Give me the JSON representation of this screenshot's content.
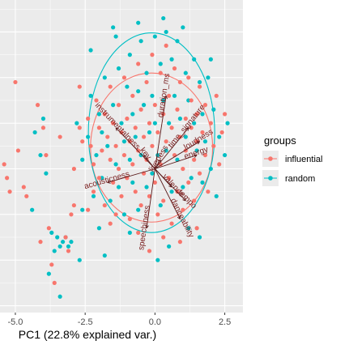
{
  "chart_data": {
    "type": "scatter",
    "title": "",
    "xlabel": "PC1 (22.8% explained var.)",
    "ylabel": "",
    "xlim": [
      -5.55,
      3.15
    ],
    "ylim": [
      -3.15,
      3.7
    ],
    "x_ticks": [
      -5.0,
      -2.5,
      0.0,
      2.5
    ],
    "x_tick_labels": [
      "-5.0",
      "-2.5",
      "0.0",
      "2.5"
    ],
    "grid": true,
    "legend_position": "right",
    "legend": {
      "title": "groups",
      "entries": [
        {
          "name": "influential",
          "color": "#F8766D"
        },
        {
          "name": "random",
          "color": "#00BFC4"
        }
      ]
    },
    "loadings": [
      {
        "label": "duration_ms",
        "x": 0.4,
        "y": 1.6
      },
      {
        "label": "time_signature",
        "x": 1.2,
        "y": 0.9
      },
      {
        "label": "loudness",
        "x": 1.6,
        "y": 0.6
      },
      {
        "label": "energy",
        "x": 1.5,
        "y": 0.3
      },
      {
        "label": "instrumentalness",
        "x": -1.4,
        "y": 0.9
      },
      {
        "label": "acousticness",
        "x": -1.7,
        "y": -0.3
      },
      {
        "label": "valence",
        "x": 0.6,
        "y": -0.4
      },
      {
        "label": "tempo",
        "x": 1.1,
        "y": -0.7
      },
      {
        "label": "danceability",
        "x": 0.9,
        "y": -1.1
      },
      {
        "label": "speechiness",
        "x": -0.3,
        "y": -1.3
      },
      {
        "label": "liveness",
        "x": 0.2,
        "y": 0.2
      },
      {
        "label": "key",
        "x": -0.4,
        "y": 0.3
      }
    ],
    "series": [
      {
        "name": "influential",
        "points": [
          [
            -5.4,
            0.1
          ],
          [
            -5.3,
            -0.2
          ],
          [
            -5.2,
            -0.5
          ],
          [
            -5.0,
            1.9
          ],
          [
            -4.9,
            0.4
          ],
          [
            -4.7,
            -0.4
          ],
          [
            -4.6,
            -0.6
          ],
          [
            -4.2,
            1.4
          ],
          [
            -4.0,
            0.9
          ],
          [
            -3.9,
            0.3
          ],
          [
            -3.8,
            -1.3
          ],
          [
            -3.7,
            -2.1
          ],
          [
            -3.4,
            0.7
          ],
          [
            -3.2,
            -1.5
          ],
          [
            -3.0,
            -1.0
          ],
          [
            -2.9,
            -0.8
          ],
          [
            -2.9,
            0.0
          ],
          [
            -2.7,
            0.9
          ],
          [
            -2.7,
            1.8
          ],
          [
            -2.6,
            0.6
          ],
          [
            -2.4,
            1.1
          ],
          [
            -2.3,
            0.5
          ],
          [
            -2.2,
            0.1
          ],
          [
            -2.2,
            -0.5
          ],
          [
            -2.1,
            1.5
          ],
          [
            -2.0,
            0.9
          ],
          [
            -2.0,
            -0.2
          ],
          [
            -1.9,
            0.4
          ],
          [
            -1.8,
            1.2
          ],
          [
            -1.8,
            -0.8
          ],
          [
            -1.7,
            0.7
          ],
          [
            -1.6,
            0.2
          ],
          [
            -1.6,
            1.8
          ],
          [
            -1.5,
            -0.3
          ],
          [
            -1.5,
            1.0
          ],
          [
            -1.4,
            0.5
          ],
          [
            -1.4,
            -1.0
          ],
          [
            -1.3,
            1.4
          ],
          [
            -1.3,
            0.0
          ],
          [
            -1.2,
            0.8
          ],
          [
            -1.2,
            -0.6
          ],
          [
            -1.1,
            2.0
          ],
          [
            -1.1,
            0.3
          ],
          [
            -1.0,
            1.1
          ],
          [
            -1.0,
            -0.2
          ],
          [
            -0.9,
            0.6
          ],
          [
            -0.9,
            -1.1
          ],
          [
            -0.8,
            1.6
          ],
          [
            -0.8,
            0.1
          ],
          [
            -0.7,
            0.9
          ],
          [
            -0.7,
            -0.5
          ],
          [
            -0.6,
            2.3
          ],
          [
            -0.6,
            0.4
          ],
          [
            -0.5,
            1.3
          ],
          [
            -0.5,
            -0.8
          ],
          [
            -0.4,
            0.7
          ],
          [
            -0.4,
            -0.1
          ],
          [
            -0.3,
            1.9
          ],
          [
            -0.3,
            0.2
          ],
          [
            -0.2,
            1.0
          ],
          [
            -0.2,
            -0.6
          ],
          [
            -0.1,
            2.5
          ],
          [
            -0.1,
            0.5
          ],
          [
            0.0,
            1.4
          ],
          [
            0.0,
            -0.3
          ],
          [
            0.1,
            0.8
          ],
          [
            0.1,
            -1.0
          ],
          [
            0.2,
            2.1
          ],
          [
            0.2,
            0.1
          ],
          [
            0.3,
            1.2
          ],
          [
            0.3,
            -0.7
          ],
          [
            0.4,
            0.6
          ],
          [
            0.4,
            2.7
          ],
          [
            0.5,
            1.6
          ],
          [
            0.5,
            -0.2
          ],
          [
            0.6,
            0.9
          ],
          [
            0.6,
            -1.2
          ],
          [
            0.7,
            2.2
          ],
          [
            0.7,
            0.3
          ],
          [
            0.8,
            1.3
          ],
          [
            0.8,
            -0.5
          ],
          [
            0.9,
            0.7
          ],
          [
            0.9,
            1.9
          ],
          [
            1.0,
            0.0
          ],
          [
            1.0,
            -0.9
          ],
          [
            1.1,
            1.1
          ],
          [
            1.1,
            0.4
          ],
          [
            1.2,
            2.0
          ],
          [
            1.2,
            -0.3
          ],
          [
            1.3,
            0.9
          ],
          [
            1.3,
            1.5
          ],
          [
            1.4,
            0.2
          ],
          [
            1.4,
            -0.7
          ],
          [
            1.5,
            1.2
          ],
          [
            1.5,
            0.6
          ],
          [
            1.6,
            1.8
          ],
          [
            1.6,
            -0.1
          ],
          [
            1.7,
            0.8
          ],
          [
            1.8,
            1.4
          ],
          [
            1.8,
            0.3
          ],
          [
            1.9,
            -0.5
          ],
          [
            2.0,
            1.0
          ],
          [
            2.1,
            0.5
          ],
          [
            2.2,
            1.6
          ],
          [
            2.3,
            0.1
          ],
          [
            2.4,
            0.8
          ],
          [
            2.5,
            1.2
          ],
          [
            0.3,
            -1.5
          ],
          [
            -0.6,
            -1.4
          ],
          [
            0.9,
            -1.6
          ],
          [
            -1.6,
            -1.2
          ],
          [
            -2.4,
            -0.9
          ],
          [
            -0.2,
            -1.8
          ],
          [
            1.5,
            -1.3
          ],
          [
            -3.6,
            -2.5
          ],
          [
            -4.1,
            -1.6
          ],
          [
            -3.1,
            -1.8
          ]
        ]
      },
      {
        "name": "random",
        "points": [
          [
            -4.3,
            0.8
          ],
          [
            -4.1,
            0.3
          ],
          [
            -4.0,
            1.1
          ],
          [
            -3.9,
            -0.1
          ],
          [
            -3.8,
            -2.3
          ],
          [
            -3.7,
            -1.4
          ],
          [
            -3.6,
            -1.8
          ],
          [
            -3.5,
            -1.5
          ],
          [
            -3.4,
            -1.7
          ],
          [
            -3.3,
            -1.6
          ],
          [
            -3.2,
            -1.5
          ],
          [
            -3.1,
            -1.7
          ],
          [
            -3.0,
            -1.6
          ],
          [
            -3.4,
            -2.8
          ],
          [
            -4.4,
            -0.9
          ],
          [
            -2.8,
            1.0
          ],
          [
            -2.6,
            -0.9
          ],
          [
            -2.6,
            0.2
          ],
          [
            -2.4,
            0.7
          ],
          [
            -2.3,
            1.6
          ],
          [
            -2.2,
            -0.6
          ],
          [
            -2.1,
            0.3
          ],
          [
            -2.0,
            1.2
          ],
          [
            -1.9,
            -0.2
          ],
          [
            -1.9,
            0.8
          ],
          [
            -1.8,
            2.0
          ],
          [
            -1.7,
            0.5
          ],
          [
            -1.6,
            -0.7
          ],
          [
            -1.5,
            1.4
          ],
          [
            -1.4,
            0.1
          ],
          [
            -1.3,
            2.2
          ],
          [
            -1.3,
            -0.4
          ],
          [
            -1.2,
            1.0
          ],
          [
            -1.1,
            0.6
          ],
          [
            -1.1,
            -1.0
          ],
          [
            -1.0,
            1.8
          ],
          [
            -0.9,
            0.2
          ],
          [
            -0.9,
            2.5
          ],
          [
            -0.8,
            1.2
          ],
          [
            -0.8,
            -0.3
          ],
          [
            -0.7,
            0.7
          ],
          [
            -0.6,
            1.7
          ],
          [
            -0.6,
            -0.9
          ],
          [
            -0.5,
            2.8
          ],
          [
            -0.5,
            0.3
          ],
          [
            -0.4,
            1.4
          ],
          [
            -0.3,
            -0.4
          ],
          [
            -0.3,
            2.1
          ],
          [
            -0.2,
            0.8
          ],
          [
            -0.1,
            1.6
          ],
          [
            -0.1,
            -0.1
          ],
          [
            0.0,
            2.9
          ],
          [
            0.0,
            1.0
          ],
          [
            0.1,
            0.3
          ],
          [
            0.2,
            2.3
          ],
          [
            0.2,
            -0.8
          ],
          [
            0.3,
            1.5
          ],
          [
            0.4,
            0.4
          ],
          [
            0.4,
            3.0
          ],
          [
            0.5,
            1.0
          ],
          [
            0.6,
            -0.5
          ],
          [
            0.6,
            2.4
          ],
          [
            0.7,
            1.6
          ],
          [
            0.8,
            0.2
          ],
          [
            0.8,
            2.8
          ],
          [
            0.9,
            1.1
          ],
          [
            1.0,
            -0.4
          ],
          [
            1.1,
            2.1
          ],
          [
            1.1,
            0.7
          ],
          [
            1.2,
            1.5
          ],
          [
            1.3,
            -0.2
          ],
          [
            1.4,
            2.4
          ],
          [
            1.4,
            1.0
          ],
          [
            1.5,
            0.4
          ],
          [
            1.6,
            1.9
          ],
          [
            1.7,
            -0.3
          ],
          [
            1.7,
            1.2
          ],
          [
            1.8,
            0.6
          ],
          [
            1.9,
            2.0
          ],
          [
            2.0,
            0.0
          ],
          [
            2.1,
            1.3
          ],
          [
            2.2,
            -0.6
          ],
          [
            2.3,
            0.7
          ],
          [
            2.5,
            0.3
          ],
          [
            2.6,
            1.0
          ],
          [
            -0.6,
            3.2
          ],
          [
            0.3,
            3.3
          ],
          [
            -1.5,
            3.1
          ],
          [
            1.2,
            -1.3
          ],
          [
            -0.9,
            -1.4
          ],
          [
            0.5,
            -1.7
          ],
          [
            1.6,
            -1.5
          ],
          [
            -2.0,
            -1.3
          ],
          [
            0.1,
            -2.0
          ],
          [
            -2.7,
            -2.0
          ],
          [
            -1.4,
            2.9
          ],
          [
            2.0,
            2.4
          ],
          [
            -2.3,
            2.6
          ],
          [
            1.0,
            3.1
          ],
          [
            -1.8,
            -1.9
          ]
        ]
      }
    ]
  }
}
